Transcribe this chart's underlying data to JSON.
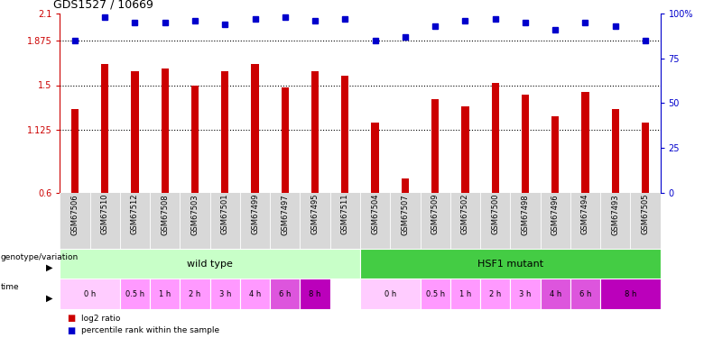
{
  "title": "GDS1527 / 10669",
  "samples": [
    "GSM67506",
    "GSM67510",
    "GSM67512",
    "GSM67508",
    "GSM67503",
    "GSM67501",
    "GSM67499",
    "GSM67497",
    "GSM67495",
    "GSM67511",
    "GSM67504",
    "GSM67507",
    "GSM67509",
    "GSM67502",
    "GSM67500",
    "GSM67498",
    "GSM67496",
    "GSM67494",
    "GSM67493",
    "GSM67505"
  ],
  "log2_values": [
    1.3,
    1.68,
    1.62,
    1.64,
    1.5,
    1.62,
    1.68,
    1.48,
    1.62,
    1.58,
    1.19,
    0.72,
    1.38,
    1.32,
    1.52,
    1.42,
    1.24,
    1.44,
    1.3,
    1.19
  ],
  "percentile_values": [
    85,
    98,
    95,
    95,
    96,
    94,
    97,
    98,
    96,
    97,
    85,
    87,
    93,
    96,
    97,
    95,
    91,
    95,
    93,
    85
  ],
  "ylim_min": 0.6,
  "ylim_max": 2.1,
  "yticks_left": [
    0.6,
    1.125,
    1.5,
    1.875,
    2.1
  ],
  "ytick_labels_left": [
    "0.6",
    "1.125",
    "1.5",
    "1.875",
    "2.1"
  ],
  "yticks_right_pct": [
    0,
    25,
    50,
    75,
    100
  ],
  "ytick_labels_right": [
    "0",
    "25",
    "50",
    "75",
    "100%"
  ],
  "bar_color": "#cc0000",
  "dot_color": "#0000cc",
  "hline_values": [
    1.125,
    1.5,
    1.875
  ],
  "genotype_groups": [
    {
      "label": "wild type",
      "start": 0,
      "end": 10,
      "color": "#c8ffc8"
    },
    {
      "label": "HSF1 mutant",
      "start": 10,
      "end": 20,
      "color": "#44cc44"
    }
  ],
  "time_spans": [
    {
      "label": "0 h",
      "start": 0,
      "end": 2,
      "color": "#ffccff"
    },
    {
      "label": "0.5 h",
      "start": 2,
      "end": 3,
      "color": "#ff99ff"
    },
    {
      "label": "1 h",
      "start": 3,
      "end": 4,
      "color": "#ff99ff"
    },
    {
      "label": "2 h",
      "start": 4,
      "end": 5,
      "color": "#ff99ff"
    },
    {
      "label": "3 h",
      "start": 5,
      "end": 6,
      "color": "#ff99ff"
    },
    {
      "label": "4 h",
      "start": 6,
      "end": 7,
      "color": "#ff99ff"
    },
    {
      "label": "6 h",
      "start": 7,
      "end": 8,
      "color": "#dd55dd"
    },
    {
      "label": "8 h",
      "start": 8,
      "end": 9,
      "color": "#bb00bb"
    },
    {
      "label": "0 h",
      "start": 10,
      "end": 12,
      "color": "#ffccff"
    },
    {
      "label": "0.5 h",
      "start": 12,
      "end": 13,
      "color": "#ff99ff"
    },
    {
      "label": "1 h",
      "start": 13,
      "end": 14,
      "color": "#ff99ff"
    },
    {
      "label": "2 h",
      "start": 14,
      "end": 15,
      "color": "#ff99ff"
    },
    {
      "label": "3 h",
      "start": 15,
      "end": 16,
      "color": "#ff99ff"
    },
    {
      "label": "4 h",
      "start": 16,
      "end": 17,
      "color": "#dd55dd"
    },
    {
      "label": "6 h",
      "start": 17,
      "end": 18,
      "color": "#dd55dd"
    },
    {
      "label": "8 h",
      "start": 18,
      "end": 20,
      "color": "#bb00bb"
    }
  ],
  "n_samples": 20,
  "sample_bg_color": "#d8d8d8",
  "label_geno": "genotype/variation",
  "label_time": "time"
}
